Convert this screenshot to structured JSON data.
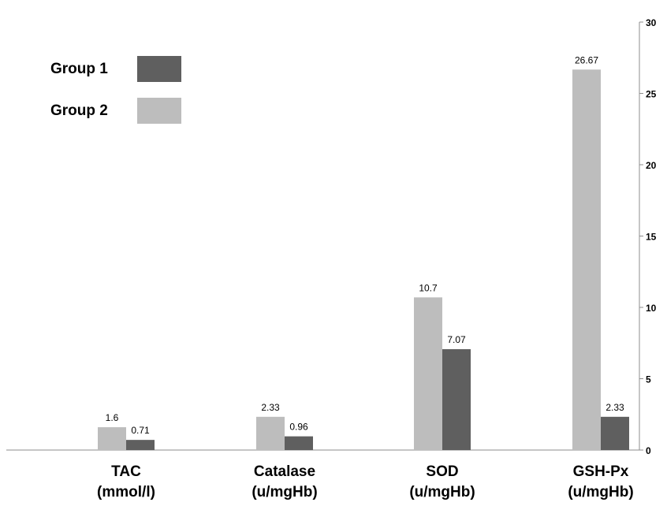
{
  "chart_data": {
    "type": "bar",
    "categories": [
      {
        "name": "TAC",
        "unit": "(mmol/l)"
      },
      {
        "name": "Catalase",
        "unit": "(u/mgHb)"
      },
      {
        "name": "SOD",
        "unit": "(u/mgHb)"
      },
      {
        "name": "GSH-Px",
        "unit": "(u/mgHb)"
      }
    ],
    "series": [
      {
        "name": "Group 2",
        "color": "#bdbdbd",
        "values": [
          1.6,
          2.33,
          10.7,
          26.67
        ],
        "labels": [
          "1.6",
          "2.33",
          "10.7",
          "26.67"
        ]
      },
      {
        "name": "Group 1",
        "color": "#5f5f5f",
        "values": [
          0.71,
          0.96,
          7.07,
          2.33
        ],
        "labels": [
          "0.71",
          "0.96",
          "7.07",
          "2.33"
        ]
      }
    ],
    "legend": [
      {
        "name": "Group 1",
        "color": "#5f5f5f"
      },
      {
        "name": "Group 2",
        "color": "#bdbdbd"
      }
    ],
    "legend_position": "top-left",
    "y_axis_position": "right",
    "ylim": [
      0,
      30
    ],
    "yticks": [
      0,
      5,
      10,
      15,
      20,
      25,
      30
    ],
    "grid": false,
    "title": "",
    "xlabel": "",
    "ylabel": ""
  }
}
